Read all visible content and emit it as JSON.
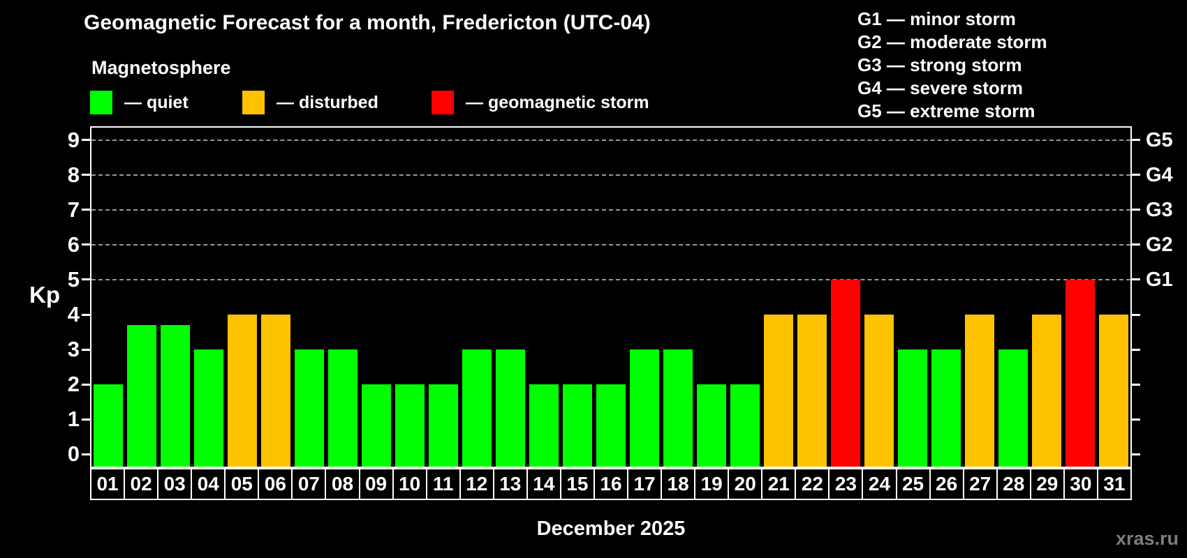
{
  "header": {
    "title": "Geomagnetic Forecast for a month, Fredericton (UTC-04)",
    "subtitle": "Magnetosphere"
  },
  "palette": {
    "quiet": "#00ff00",
    "disturbed": "#ffc200",
    "storm": "#ff0000"
  },
  "legend": {
    "items": [
      {
        "status": "quiet",
        "label": "— quiet"
      },
      {
        "status": "disturbed",
        "label": "— disturbed"
      },
      {
        "status": "storm",
        "label": "— geomagnetic storm"
      }
    ]
  },
  "storm_legend": {
    "items": [
      "G1 — minor storm",
      "G2 — moderate storm",
      "G3 — strong storm",
      "G4 — severe storm",
      "G5 — extreme storm"
    ]
  },
  "chart_data": {
    "type": "bar",
    "title": "Geomagnetic Forecast for a month, Fredericton (UTC-04)",
    "ylabel": "Kp",
    "xlabel": "December 2025",
    "ylim": [
      0,
      9
    ],
    "axis_min": -0.35,
    "axis_max": 9.35,
    "yticks": [
      0,
      1,
      2,
      3,
      4,
      5,
      6,
      7,
      8,
      9
    ],
    "gridlines": [
      5,
      6,
      7,
      8,
      9
    ],
    "grid_style": "dashed horizontal, storm levels only",
    "right_axis": [
      {
        "label": "G1",
        "value": 5
      },
      {
        "label": "G2",
        "value": 6
      },
      {
        "label": "G3",
        "value": 7
      },
      {
        "label": "G4",
        "value": 8
      },
      {
        "label": "G5",
        "value": 9
      }
    ],
    "bars": [
      {
        "day": "01",
        "kp": 2,
        "status": "quiet"
      },
      {
        "day": "02",
        "kp": 3.7,
        "status": "quiet"
      },
      {
        "day": "03",
        "kp": 3.7,
        "status": "quiet"
      },
      {
        "day": "04",
        "kp": 3,
        "status": "quiet"
      },
      {
        "day": "05",
        "kp": 4,
        "status": "disturbed"
      },
      {
        "day": "06",
        "kp": 4,
        "status": "disturbed"
      },
      {
        "day": "07",
        "kp": 3,
        "status": "quiet"
      },
      {
        "day": "08",
        "kp": 3,
        "status": "quiet"
      },
      {
        "day": "09",
        "kp": 2,
        "status": "quiet"
      },
      {
        "day": "10",
        "kp": 2,
        "status": "quiet"
      },
      {
        "day": "11",
        "kp": 2,
        "status": "quiet"
      },
      {
        "day": "12",
        "kp": 3,
        "status": "quiet"
      },
      {
        "day": "13",
        "kp": 3,
        "status": "quiet"
      },
      {
        "day": "14",
        "kp": 2,
        "status": "quiet"
      },
      {
        "day": "15",
        "kp": 2,
        "status": "quiet"
      },
      {
        "day": "16",
        "kp": 2,
        "status": "quiet"
      },
      {
        "day": "17",
        "kp": 3,
        "status": "quiet"
      },
      {
        "day": "18",
        "kp": 3,
        "status": "quiet"
      },
      {
        "day": "19",
        "kp": 2,
        "status": "quiet"
      },
      {
        "day": "20",
        "kp": 2,
        "status": "quiet"
      },
      {
        "day": "21",
        "kp": 4,
        "status": "disturbed"
      },
      {
        "day": "22",
        "kp": 4,
        "status": "disturbed"
      },
      {
        "day": "23",
        "kp": 5,
        "status": "storm"
      },
      {
        "day": "24",
        "kp": 4,
        "status": "disturbed"
      },
      {
        "day": "25",
        "kp": 3,
        "status": "quiet"
      },
      {
        "day": "26",
        "kp": 3,
        "status": "quiet"
      },
      {
        "day": "27",
        "kp": 4,
        "status": "disturbed"
      },
      {
        "day": "28",
        "kp": 3,
        "status": "quiet"
      },
      {
        "day": "29",
        "kp": 4,
        "status": "disturbed"
      },
      {
        "day": "30",
        "kp": 5,
        "status": "storm"
      },
      {
        "day": "31",
        "kp": 4,
        "status": "disturbed"
      }
    ]
  },
  "footer": {
    "watermark": "xras.ru"
  }
}
